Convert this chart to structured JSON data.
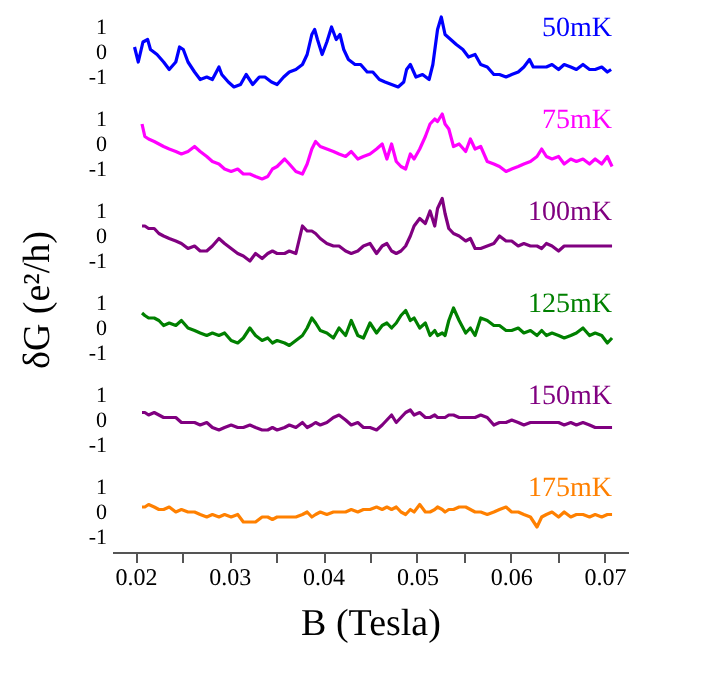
{
  "chart_data": [
    {
      "type": "line",
      "ylabel": "δG  (e²/h)",
      "tick_labels": "y",
      "xlim": [
        0.0175,
        0.0725
      ],
      "ylim": [
        -1.6,
        1.6
      ],
      "yticks": [
        -1,
        0,
        1
      ],
      "x": [
        0.0199,
        0.0203,
        0.0208,
        0.0213,
        0.0216,
        0.0223,
        0.023,
        0.0236,
        0.0243,
        0.0247,
        0.0251,
        0.0256,
        0.0263,
        0.0269,
        0.0276,
        0.0282,
        0.0289,
        0.0292,
        0.0299,
        0.0305,
        0.0312,
        0.0318,
        0.0325,
        0.0332,
        0.0338,
        0.0345,
        0.0351,
        0.0358,
        0.0364,
        0.0371,
        0.0378,
        0.0383,
        0.0388,
        0.0391,
        0.0394,
        0.0399,
        0.0404,
        0.0409,
        0.0414,
        0.0418,
        0.0422,
        0.0427,
        0.0434,
        0.044,
        0.0447,
        0.0453,
        0.046,
        0.0466,
        0.0473,
        0.048,
        0.0486,
        0.0489,
        0.0493,
        0.0499,
        0.0506,
        0.0513,
        0.0517,
        0.0522,
        0.0526,
        0.053,
        0.0536,
        0.0542,
        0.0549,
        0.0555,
        0.0562,
        0.0568,
        0.0575,
        0.0582,
        0.0588,
        0.0595,
        0.0601,
        0.0608,
        0.0614,
        0.062,
        0.0624,
        0.0631,
        0.0638,
        0.0644,
        0.0651,
        0.0657,
        0.0664,
        0.067,
        0.0677,
        0.0684,
        0.069,
        0.0697,
        0.0703,
        0.0707
      ],
      "series": [
        {
          "name": "50mK",
          "color": "#0000ff",
          "values": [
            0.2,
            -0.4,
            0.4,
            0.5,
            0.1,
            -0.1,
            -0.4,
            -0.7,
            -0.4,
            0.2,
            0.1,
            -0.4,
            -0.8,
            -1.1,
            -1.0,
            -1.1,
            -0.6,
            -0.9,
            -1.2,
            -1.4,
            -1.3,
            -0.9,
            -1.3,
            -1.0,
            -1.0,
            -1.2,
            -1.3,
            -1.0,
            -0.8,
            -0.7,
            -0.5,
            -0.1,
            0.7,
            0.9,
            0.5,
            -0.1,
            0.4,
            1.0,
            0.5,
            0.7,
            0.1,
            -0.3,
            -0.5,
            -0.5,
            -0.8,
            -0.8,
            -1.1,
            -1.2,
            -1.3,
            -1.4,
            -1.2,
            -0.7,
            -0.5,
            -1.0,
            -0.9,
            -1.1,
            -0.5,
            0.9,
            1.4,
            0.7,
            0.5,
            0.3,
            0.1,
            -0.2,
            -0.1,
            -0.5,
            -0.6,
            -0.9,
            -0.9,
            -1.0,
            -0.9,
            -0.8,
            -0.6,
            -0.3,
            -0.6,
            -0.6,
            -0.6,
            -0.5,
            -0.7,
            -0.5,
            -0.6,
            -0.7,
            -0.5,
            -0.7,
            -0.7,
            -0.6,
            -0.8,
            -0.7
          ]
        }
      ]
    },
    {
      "type": "line",
      "tick_labels": "y",
      "xlim": [
        0.0175,
        0.0725
      ],
      "ylim": [
        -1.6,
        1.6
      ],
      "yticks": [
        -1,
        0,
        1
      ],
      "x": [
        0.0207,
        0.021,
        0.0214,
        0.022,
        0.0225,
        0.023,
        0.0236,
        0.0243,
        0.0249,
        0.0256,
        0.0263,
        0.0269,
        0.0276,
        0.0282,
        0.0289,
        0.0295,
        0.0302,
        0.0309,
        0.0315,
        0.0322,
        0.0328,
        0.0335,
        0.0341,
        0.0346,
        0.0351,
        0.0359,
        0.0364,
        0.0371,
        0.0378,
        0.0383,
        0.0388,
        0.0392,
        0.0397,
        0.0404,
        0.0411,
        0.0417,
        0.0424,
        0.043,
        0.0437,
        0.0443,
        0.045,
        0.0457,
        0.0463,
        0.0468,
        0.0473,
        0.0478,
        0.0483,
        0.0488,
        0.0493,
        0.0497,
        0.0503,
        0.0509,
        0.0514,
        0.0519,
        0.0522,
        0.0527,
        0.053,
        0.0534,
        0.0539,
        0.0545,
        0.0552,
        0.0557,
        0.0562,
        0.0568,
        0.0575,
        0.0582,
        0.0588,
        0.0595,
        0.0601,
        0.0608,
        0.0614,
        0.0621,
        0.0628,
        0.0633,
        0.0638,
        0.0644,
        0.0651,
        0.0657,
        0.0664,
        0.067,
        0.0677,
        0.0684,
        0.069,
        0.0697,
        0.0703,
        0.0708
      ],
      "series": [
        {
          "name": "75mK",
          "color": "#ff00ff",
          "values": [
            0.8,
            0.3,
            0.2,
            0.1,
            0,
            -0.1,
            -0.2,
            -0.3,
            -0.4,
            -0.3,
            -0.1,
            -0.3,
            -0.5,
            -0.7,
            -0.8,
            -1.0,
            -1.1,
            -1.0,
            -1.2,
            -1.2,
            -1.3,
            -1.4,
            -1.3,
            -1.0,
            -0.9,
            -0.6,
            -0.8,
            -1.1,
            -1.2,
            -0.8,
            -0.2,
            0.1,
            -0.1,
            -0.2,
            -0.3,
            -0.4,
            -0.5,
            -0.3,
            -0.6,
            -0.5,
            -0.4,
            -0.2,
            0,
            -0.6,
            0,
            -0.7,
            -0.9,
            -1.0,
            -0.4,
            -0.6,
            -0.2,
            0.3,
            0.8,
            1.0,
            0.9,
            1.2,
            0.8,
            0.6,
            -0.1,
            0,
            -0.3,
            0.2,
            -0.2,
            -0.1,
            -0.7,
            -0.8,
            -0.9,
            -1.1,
            -1.0,
            -0.9,
            -0.8,
            -0.7,
            -0.5,
            -0.2,
            -0.5,
            -0.6,
            -0.5,
            -0.8,
            -0.6,
            -0.7,
            -0.6,
            -0.8,
            -0.6,
            -0.8,
            -0.5,
            -0.9
          ]
        }
      ]
    },
    {
      "type": "line",
      "tick_labels": "y",
      "xlim": [
        0.0175,
        0.0725
      ],
      "ylim": [
        -1.6,
        1.6
      ],
      "yticks": [
        -1,
        0,
        1
      ],
      "x": [
        0.0207,
        0.021,
        0.0214,
        0.022,
        0.0225,
        0.023,
        0.0236,
        0.0243,
        0.0249,
        0.0256,
        0.0263,
        0.0269,
        0.0276,
        0.0282,
        0.0289,
        0.0295,
        0.0302,
        0.0309,
        0.0315,
        0.0322,
        0.0328,
        0.0335,
        0.0341,
        0.0346,
        0.0351,
        0.0359,
        0.0364,
        0.0371,
        0.0378,
        0.0383,
        0.0388,
        0.0392,
        0.0397,
        0.0404,
        0.0411,
        0.0417,
        0.0424,
        0.043,
        0.0437,
        0.0443,
        0.045,
        0.0457,
        0.0463,
        0.0468,
        0.0473,
        0.0478,
        0.0483,
        0.0488,
        0.0493,
        0.0497,
        0.0503,
        0.0509,
        0.0514,
        0.0519,
        0.0522,
        0.0527,
        0.053,
        0.0534,
        0.0539,
        0.0545,
        0.0552,
        0.0557,
        0.0562,
        0.0568,
        0.0575,
        0.0582,
        0.0588,
        0.0595,
        0.0601,
        0.0608,
        0.0614,
        0.0621,
        0.0628,
        0.0633,
        0.0638,
        0.0644,
        0.0651,
        0.0657,
        0.0664,
        0.067,
        0.0677,
        0.0684,
        0.069,
        0.0697,
        0.0703,
        0.0708
      ],
      "series": [
        {
          "name": "100mK",
          "color": "#800080",
          "values": [
            0.4,
            0.4,
            0.3,
            0.3,
            0.1,
            0,
            -0.1,
            -0.2,
            -0.3,
            -0.5,
            -0.4,
            -0.6,
            -0.6,
            -0.4,
            -0.1,
            -0.3,
            -0.5,
            -0.7,
            -0.8,
            -1.0,
            -0.7,
            -0.9,
            -0.7,
            -0.6,
            -0.7,
            -0.7,
            -0.6,
            -0.7,
            0.4,
            0.2,
            0.2,
            0.1,
            -0.1,
            -0.3,
            -0.4,
            -0.4,
            -0.6,
            -0.7,
            -0.6,
            -0.4,
            -0.3,
            -0.7,
            -0.4,
            -0.3,
            -0.6,
            -0.7,
            -0.6,
            -0.4,
            0,
            0.4,
            0.7,
            0.5,
            1.0,
            0.4,
            1.1,
            1.5,
            0.9,
            0.3,
            0.1,
            0,
            -0.2,
            -0.1,
            -0.5,
            -0.5,
            -0.4,
            -0.3,
            0,
            -0.2,
            -0.2,
            -0.4,
            -0.3,
            -0.4,
            -0.4,
            -0.5,
            -0.3,
            -0.4,
            -0.6,
            -0.4,
            -0.4,
            -0.4,
            -0.4,
            -0.4,
            -0.4,
            -0.4,
            -0.4,
            -0.4
          ]
        }
      ]
    },
    {
      "type": "line",
      "tick_labels": "y",
      "xlim": [
        0.0175,
        0.0725
      ],
      "ylim": [
        -1.6,
        1.6
      ],
      "yticks": [
        -1,
        0,
        1
      ],
      "x": [
        0.0207,
        0.021,
        0.0214,
        0.022,
        0.0225,
        0.023,
        0.0236,
        0.0243,
        0.0249,
        0.0256,
        0.0263,
        0.0269,
        0.0276,
        0.0282,
        0.0289,
        0.0295,
        0.0302,
        0.0309,
        0.0315,
        0.0322,
        0.0328,
        0.0335,
        0.0341,
        0.0346,
        0.0351,
        0.0359,
        0.0364,
        0.0371,
        0.0378,
        0.0383,
        0.0388,
        0.0392,
        0.0397,
        0.0404,
        0.0411,
        0.0417,
        0.0424,
        0.043,
        0.0437,
        0.0443,
        0.045,
        0.0457,
        0.0463,
        0.0468,
        0.0473,
        0.0478,
        0.0483,
        0.0488,
        0.0493,
        0.0497,
        0.0503,
        0.0509,
        0.0514,
        0.0519,
        0.0522,
        0.0527,
        0.053,
        0.0534,
        0.0539,
        0.0545,
        0.0552,
        0.0557,
        0.0562,
        0.0568,
        0.0575,
        0.0582,
        0.0588,
        0.0595,
        0.0601,
        0.0608,
        0.0614,
        0.0621,
        0.0628,
        0.0633,
        0.0638,
        0.0644,
        0.0651,
        0.0657,
        0.0664,
        0.067,
        0.0677,
        0.0684,
        0.069,
        0.0697,
        0.0703,
        0.0708
      ],
      "series": [
        {
          "name": "125mK",
          "color": "#008000",
          "values": [
            0.6,
            0.5,
            0.4,
            0.4,
            0.3,
            0.1,
            0.2,
            0.1,
            0.3,
            0,
            -0.1,
            -0.2,
            -0.3,
            -0.2,
            -0.3,
            -0.2,
            -0.5,
            -0.6,
            -0.4,
            0,
            -0.3,
            -0.5,
            -0.4,
            -0.6,
            -0.5,
            -0.6,
            -0.7,
            -0.5,
            -0.3,
            0,
            0.4,
            0.2,
            -0.1,
            -0.2,
            -0.4,
            0,
            -0.3,
            0.3,
            -0.3,
            -0.4,
            0.2,
            -0.2,
            0.1,
            0.2,
            0,
            0.2,
            0.5,
            0.7,
            0.3,
            0.4,
            0,
            0.2,
            -0.3,
            -0.1,
            -0.3,
            -0.2,
            -0.3,
            0.3,
            0.8,
            0.3,
            -0.2,
            0,
            -0.3,
            0.4,
            0.3,
            0.1,
            0.1,
            -0.1,
            -0.1,
            0,
            -0.2,
            -0.1,
            -0.3,
            -0.1,
            -0.3,
            -0.2,
            -0.3,
            -0.4,
            -0.3,
            -0.2,
            0,
            -0.3,
            -0.2,
            -0.3,
            -0.6,
            -0.4
          ]
        }
      ]
    },
    {
      "type": "line",
      "tick_labels": "y",
      "xlim": [
        0.0175,
        0.0725
      ],
      "ylim": [
        -1.6,
        1.6
      ],
      "yticks": [
        -1,
        0,
        1
      ],
      "x": [
        0.0207,
        0.021,
        0.0214,
        0.022,
        0.0225,
        0.023,
        0.0236,
        0.0243,
        0.0249,
        0.0256,
        0.0263,
        0.0269,
        0.0276,
        0.0282,
        0.0289,
        0.0295,
        0.0302,
        0.0309,
        0.0315,
        0.0322,
        0.0328,
        0.0335,
        0.0341,
        0.0346,
        0.0351,
        0.0359,
        0.0364,
        0.0371,
        0.0378,
        0.0383,
        0.0388,
        0.0392,
        0.0397,
        0.0404,
        0.0411,
        0.0417,
        0.0424,
        0.043,
        0.0437,
        0.0443,
        0.045,
        0.0457,
        0.0463,
        0.0468,
        0.0473,
        0.0478,
        0.0483,
        0.0488,
        0.0493,
        0.0497,
        0.0503,
        0.0509,
        0.0514,
        0.0519,
        0.0522,
        0.0527,
        0.053,
        0.0534,
        0.0539,
        0.0545,
        0.0552,
        0.0557,
        0.0562,
        0.0568,
        0.0575,
        0.0582,
        0.0588,
        0.0595,
        0.0601,
        0.0608,
        0.0614,
        0.0621,
        0.0628,
        0.0633,
        0.0638,
        0.0644,
        0.0651,
        0.0657,
        0.0664,
        0.067,
        0.0677,
        0.0684,
        0.069,
        0.0697,
        0.0703,
        0.0708
      ],
      "series": [
        {
          "name": "150mK",
          "color": "#800080",
          "values": [
            0.3,
            0.3,
            0.2,
            0.3,
            0.2,
            0.1,
            0.1,
            0.1,
            -0.1,
            -0.1,
            -0.1,
            -0.2,
            -0.1,
            -0.3,
            -0.4,
            -0.3,
            -0.2,
            -0.3,
            -0.3,
            -0.2,
            -0.3,
            -0.4,
            -0.4,
            -0.3,
            -0.4,
            -0.3,
            -0.2,
            -0.3,
            -0.1,
            -0.3,
            -0.2,
            -0.1,
            -0.2,
            -0.1,
            0.1,
            0.2,
            0,
            -0.2,
            -0.1,
            -0.3,
            -0.3,
            -0.4,
            -0.2,
            0,
            0.2,
            -0.1,
            0.1,
            0.3,
            0.4,
            0.2,
            0.3,
            0.1,
            0.1,
            0.2,
            0.1,
            0.1,
            0.1,
            0.2,
            0.2,
            0.1,
            0.1,
            0.1,
            0.1,
            0.2,
            0.1,
            -0.2,
            -0.1,
            -0.1,
            0,
            -0.1,
            -0.2,
            -0.1,
            -0.1,
            -0.1,
            -0.1,
            -0.1,
            -0.1,
            -0.2,
            -0.1,
            -0.2,
            -0.1,
            -0.2,
            -0.3,
            -0.3,
            -0.3,
            -0.3
          ]
        }
      ]
    },
    {
      "type": "line",
      "xlabel": "B (Tesla)",
      "xlim": [
        0.0175,
        0.0725
      ],
      "xticks": [
        0.02,
        {
          "value": 0.025,
          "label": null
        },
        0.03,
        {
          "value": 0.035,
          "label": null
        },
        0.04,
        {
          "value": 0.045,
          "label": null
        },
        0.05,
        {
          "value": 0.055,
          "label": null
        },
        0.06,
        {
          "value": 0.065,
          "label": null
        },
        0.07
      ],
      "ylim": [
        -1.6,
        1.6
      ],
      "yticks": [
        -1,
        0,
        1
      ],
      "x": [
        0.0207,
        0.021,
        0.0214,
        0.022,
        0.0225,
        0.023,
        0.0236,
        0.0243,
        0.0249,
        0.0256,
        0.0263,
        0.0269,
        0.0276,
        0.0282,
        0.0289,
        0.0295,
        0.0302,
        0.0309,
        0.0315,
        0.0322,
        0.0328,
        0.0335,
        0.0341,
        0.0346,
        0.0351,
        0.0359,
        0.0364,
        0.0371,
        0.0378,
        0.0383,
        0.0388,
        0.0392,
        0.0397,
        0.0404,
        0.0411,
        0.0417,
        0.0424,
        0.043,
        0.0437,
        0.0443,
        0.045,
        0.0457,
        0.0463,
        0.0468,
        0.0473,
        0.0478,
        0.0483,
        0.0488,
        0.0493,
        0.0497,
        0.0503,
        0.0509,
        0.0514,
        0.0519,
        0.0522,
        0.0527,
        0.053,
        0.0534,
        0.0539,
        0.0545,
        0.0552,
        0.0557,
        0.0562,
        0.0568,
        0.0575,
        0.0582,
        0.0588,
        0.0595,
        0.0601,
        0.0608,
        0.0614,
        0.0621,
        0.0628,
        0.0633,
        0.0638,
        0.0644,
        0.0651,
        0.0657,
        0.0664,
        0.067,
        0.0677,
        0.0684,
        0.069,
        0.0697,
        0.0703,
        0.0708
      ],
      "series": [
        {
          "name": "175mK",
          "color": "#ff8000",
          "values": [
            0.2,
            0.2,
            0.3,
            0.2,
            0.1,
            0.1,
            0.2,
            0,
            0.1,
            0,
            0,
            -0.1,
            -0.2,
            -0.1,
            -0.2,
            -0.1,
            -0.2,
            -0.1,
            -0.4,
            -0.4,
            -0.4,
            -0.2,
            -0.2,
            -0.3,
            -0.2,
            -0.2,
            -0.2,
            -0.2,
            -0.1,
            0,
            -0.2,
            -0.1,
            0,
            -0.1,
            0,
            0,
            0,
            0.1,
            0,
            0.1,
            0.1,
            0.2,
            0.1,
            0.2,
            0.1,
            0.2,
            0,
            -0.1,
            0.1,
            0,
            0.3,
            0,
            0,
            0.1,
            0.2,
            0.1,
            0,
            0.1,
            0.1,
            0.2,
            0.2,
            0.1,
            0,
            0,
            -0.1,
            0,
            0.1,
            0.2,
            0,
            0,
            -0.1,
            -0.2,
            -0.6,
            -0.2,
            -0.1,
            0,
            -0.2,
            0,
            -0.2,
            -0.1,
            -0.1,
            -0.2,
            -0.1,
            -0.2,
            -0.1,
            -0.1
          ]
        }
      ]
    }
  ]
}
